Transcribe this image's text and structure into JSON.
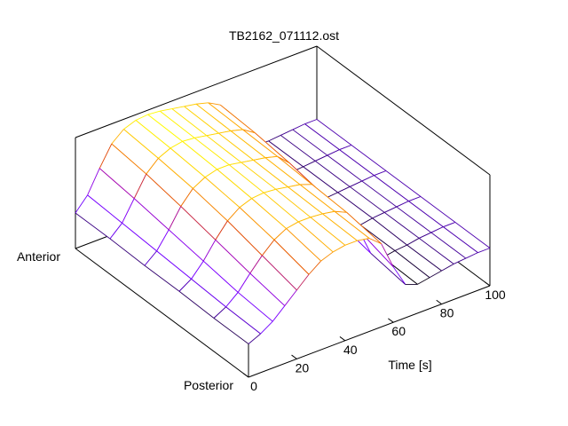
{
  "chart_data": {
    "type": "surface",
    "title": "TB2162_071112.ost",
    "xlabel": "Time [s]",
    "x": [
      0,
      5,
      10,
      15,
      20,
      25,
      30,
      35,
      40,
      45,
      50,
      55,
      60,
      65,
      70,
      75,
      80,
      85,
      90,
      95,
      100
    ],
    "categories": [
      "Posterior",
      null,
      null,
      null,
      null,
      "Anterior"
    ],
    "z": [
      [
        0.3,
        0.35,
        0.42,
        0.52,
        0.62,
        0.72,
        0.8,
        0.84,
        0.86,
        0.86,
        0.84,
        0.75,
        0.5,
        0.3,
        0.26,
        0.28,
        0.3,
        0.32,
        0.33,
        0.34,
        0.34
      ],
      [
        0.3,
        0.36,
        0.45,
        0.58,
        0.7,
        0.8,
        0.86,
        0.88,
        0.88,
        0.87,
        0.85,
        0.8,
        0.6,
        0.35,
        0.27,
        0.29,
        0.3,
        0.32,
        0.33,
        0.34,
        0.34
      ],
      [
        0.31,
        0.38,
        0.5,
        0.65,
        0.78,
        0.86,
        0.9,
        0.91,
        0.9,
        0.88,
        0.86,
        0.82,
        0.68,
        0.42,
        0.28,
        0.29,
        0.31,
        0.32,
        0.33,
        0.34,
        0.34
      ],
      [
        0.31,
        0.4,
        0.55,
        0.72,
        0.84,
        0.9,
        0.93,
        0.93,
        0.91,
        0.89,
        0.87,
        0.84,
        0.74,
        0.5,
        0.3,
        0.3,
        0.31,
        0.32,
        0.33,
        0.34,
        0.34
      ],
      [
        0.32,
        0.42,
        0.6,
        0.78,
        0.88,
        0.93,
        0.95,
        0.94,
        0.92,
        0.9,
        0.88,
        0.85,
        0.78,
        0.56,
        0.32,
        0.3,
        0.31,
        0.32,
        0.33,
        0.34,
        0.34
      ],
      [
        0.32,
        0.44,
        0.64,
        0.82,
        0.91,
        0.95,
        0.96,
        0.95,
        0.93,
        0.91,
        0.89,
        0.86,
        0.8,
        0.6,
        0.34,
        0.31,
        0.31,
        0.32,
        0.33,
        0.34,
        0.34
      ]
    ],
    "xlim": [
      0,
      100
    ],
    "xticks": [
      0,
      20,
      40,
      60,
      80,
      100
    ],
    "zlim": [
      0,
      1
    ],
    "palette": [
      "#000000",
      "#7000ff",
      "#8000ff",
      "#a000c0",
      "#e04000",
      "#ffa000",
      "#ffff00"
    ],
    "cblim": [
      0.26,
      0.96
    ]
  }
}
